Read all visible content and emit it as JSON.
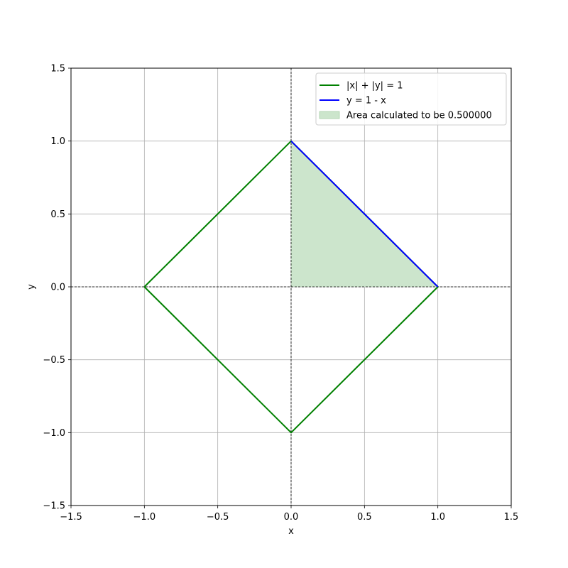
{
  "chart_data": {
    "type": "line",
    "xlabel": "x",
    "ylabel": "y",
    "xlim": [
      -1.5,
      1.5
    ],
    "ylim": [
      -1.5,
      1.5
    ],
    "xticks": [
      -1.5,
      -1.0,
      -0.5,
      0.0,
      0.5,
      1.0,
      1.5
    ],
    "yticks": [
      -1.5,
      -1.0,
      -0.5,
      0.0,
      0.5,
      1.0,
      1.5
    ],
    "xtick_labels": [
      "−1.5",
      "−1.0",
      "−0.5",
      "0.0",
      "0.5",
      "1.0",
      "1.5"
    ],
    "ytick_labels": [
      "−1.5",
      "−1.0",
      "−0.5",
      "0.0",
      "0.5",
      "1.0",
      "1.5"
    ],
    "grid": true,
    "reference_lines": {
      "x": 0,
      "y": 0,
      "style": "dashed",
      "color": "#000000"
    },
    "legend_position": "top-right",
    "series": [
      {
        "name": "|x| + |y| = 1",
        "kind": "line",
        "color": "#008000",
        "x": [
          -1,
          0,
          1,
          0,
          -1
        ],
        "y": [
          0,
          1,
          0,
          -1,
          0
        ]
      },
      {
        "name": "y = 1 - x",
        "kind": "line",
        "color": "#0000ff",
        "x": [
          0,
          1
        ],
        "y": [
          1,
          0
        ]
      },
      {
        "name": "Area calculated to be 0.500000",
        "kind": "fill",
        "color": "#cce5cc",
        "x": [
          0,
          1
        ],
        "y_upper": [
          1,
          0
        ],
        "y_lower": [
          0,
          0
        ]
      }
    ]
  }
}
